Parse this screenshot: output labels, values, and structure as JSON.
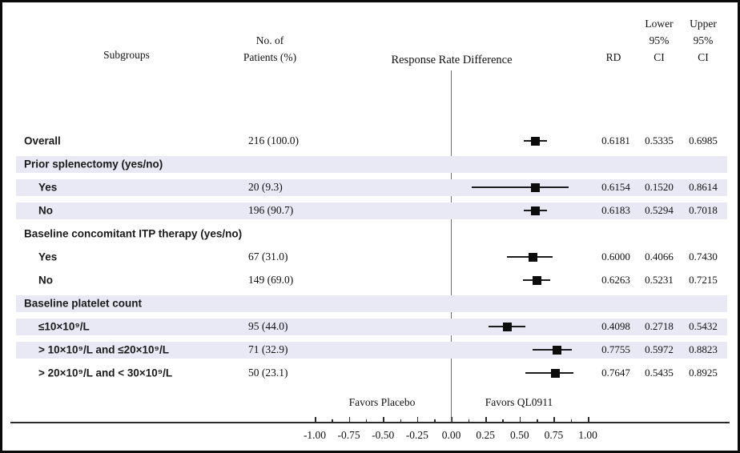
{
  "header": {
    "subgroups_label": "Subgroups",
    "patients_label_line1": "No. of",
    "patients_label_line2": "Patients (%)",
    "plot_title": "Response Rate Difference",
    "rd_label": "RD",
    "lower_ci_label_lines": [
      "Lower",
      "95%",
      "CI"
    ],
    "upper_ci_label_lines": [
      "Upper",
      "95%",
      "CI"
    ]
  },
  "footer": {
    "favors_left": "Favors Placebo",
    "favors_right": "Favors QL0911"
  },
  "colors": {
    "stripe": "#e8e9f4",
    "marker": "#0c0c0c",
    "axis": "#2a2a2a",
    "zero_line": "#6e6e6e"
  },
  "chart_data": {
    "type": "scatter",
    "subtype": "forest-plot",
    "title": "Response Rate Difference",
    "xlabel": "",
    "ylabel": "",
    "xlim": [
      -1.15,
      1.15
    ],
    "grid": false,
    "zero_reference_line": 0.0,
    "axis_ticks": [
      {
        "v": -1.0,
        "label": "-1.00"
      },
      {
        "v": -0.75,
        "label": "-0.75"
      },
      {
        "v": -0.5,
        "label": "-0.50"
      },
      {
        "v": -0.25,
        "label": "-0.25"
      },
      {
        "v": 0.0,
        "label": "0.00"
      },
      {
        "v": 0.25,
        "label": "0.25"
      },
      {
        "v": 0.5,
        "label": "0.50"
      },
      {
        "v": 0.75,
        "label": "0.75"
      },
      {
        "v": 1.0,
        "label": "1.00"
      }
    ],
    "minor_tick_step": 0.125,
    "rows": [
      {
        "label": "Overall",
        "kind": "data",
        "indent": 0,
        "striped": false,
        "patients": "216 (100.0)",
        "rd": "0.6181",
        "lower": "0.5335",
        "upper": "0.6985"
      },
      {
        "label": "Prior splenectomy (yes/no)",
        "kind": "section",
        "indent": 0,
        "striped": true
      },
      {
        "label": "Yes",
        "kind": "data",
        "indent": 1,
        "striped": true,
        "patients": "20 (9.3)",
        "rd": "0.6154",
        "lower": "0.1520",
        "upper": "0.8614"
      },
      {
        "label": "No",
        "kind": "data",
        "indent": 1,
        "striped": true,
        "patients": "196 (90.7)",
        "rd": "0.6183",
        "lower": "0.5294",
        "upper": "0.7018"
      },
      {
        "label": "Baseline concomitant ITP therapy (yes/no)",
        "kind": "section",
        "indent": 0,
        "striped": false
      },
      {
        "label": "Yes",
        "kind": "data",
        "indent": 1,
        "striped": false,
        "patients": "67 (31.0)",
        "rd": "0.6000",
        "lower": "0.4066",
        "upper": "0.7430"
      },
      {
        "label": "No",
        "kind": "data",
        "indent": 1,
        "striped": false,
        "patients": "149 (69.0)",
        "rd": "0.6263",
        "lower": "0.5231",
        "upper": "0.7215"
      },
      {
        "label": "Baseline platelet count",
        "kind": "section",
        "indent": 0,
        "striped": true
      },
      {
        "label": "≤10×10⁹/L",
        "kind": "data",
        "indent": 1,
        "striped": true,
        "patients": "95 (44.0)",
        "rd": "0.4098",
        "lower": "0.2718",
        "upper": "0.5432"
      },
      {
        "label": "> 10×10⁹/L and ≤20×10⁹/L",
        "kind": "data",
        "indent": 1,
        "striped": true,
        "patients": "71 (32.9)",
        "rd": "0.7755",
        "lower": "0.5972",
        "upper": "0.8823"
      },
      {
        "label": "> 20×10⁹/L and < 30×10⁹/L",
        "kind": "data",
        "indent": 1,
        "striped": false,
        "patients": "50 (23.1)",
        "rd": "0.7647",
        "lower": "0.5435",
        "upper": "0.8925"
      }
    ]
  }
}
